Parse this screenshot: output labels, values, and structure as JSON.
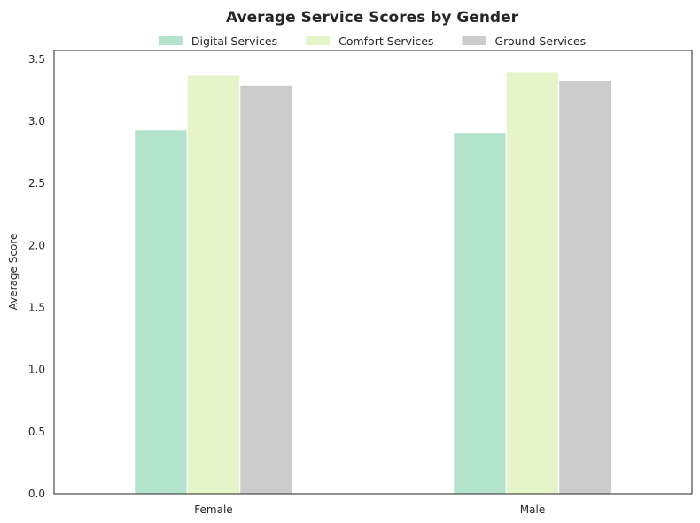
{
  "chart_data": {
    "type": "bar",
    "title": "Average Service Scores by Gender",
    "xlabel": "",
    "ylabel": "Average Score",
    "categories": [
      "Female",
      "Male"
    ],
    "series": [
      {
        "name": "Digital Services",
        "color": "#b3e2cd",
        "values": [
          2.93,
          2.91
        ]
      },
      {
        "name": "Comfort Services",
        "color": "#e6f5c9",
        "values": [
          3.37,
          3.4
        ]
      },
      {
        "name": "Ground Services",
        "color": "#cccccc",
        "values": [
          3.29,
          3.33
        ]
      }
    ],
    "ylim": [
      0,
      3.57
    ],
    "yticks": [
      "0.0",
      "0.5",
      "1.0",
      "1.5",
      "2.0",
      "2.5",
      "3.0",
      "3.5"
    ],
    "grid": false,
    "legend": "top-center"
  }
}
